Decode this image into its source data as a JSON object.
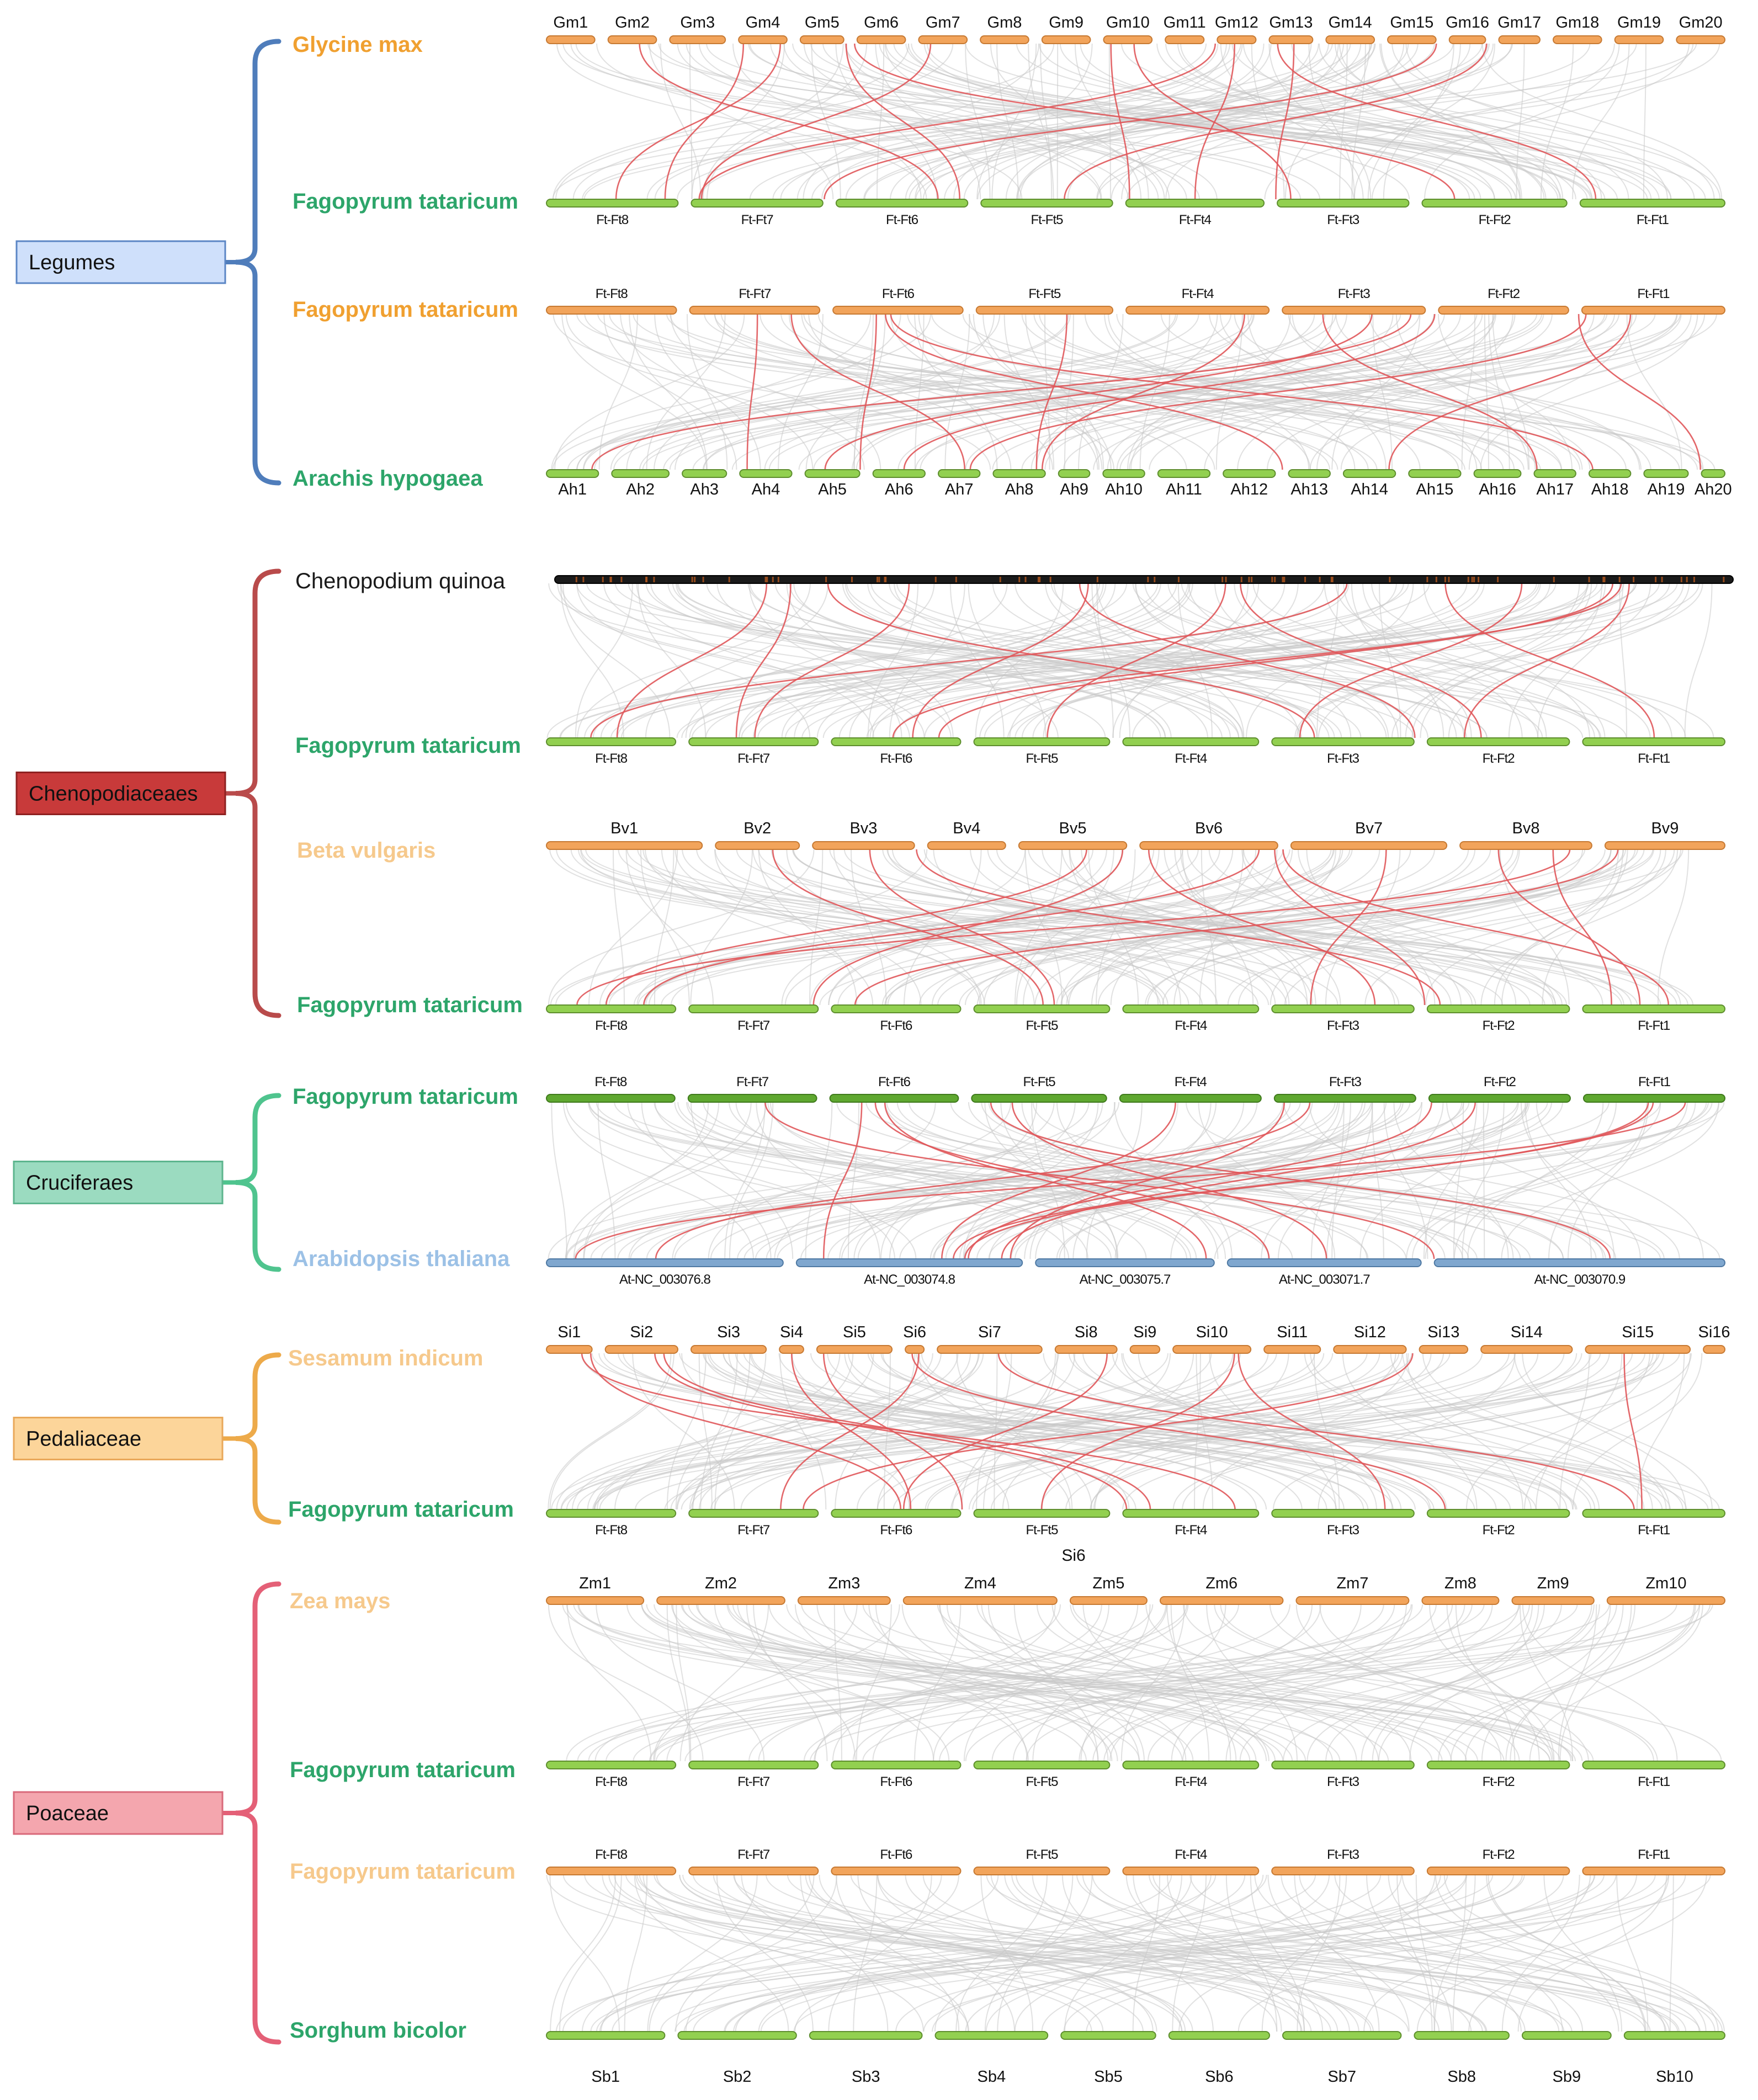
{
  "colors": {
    "bar_orange": "#F2A45B",
    "bar_orange_edge": "#C77A33",
    "bar_green": "#92D050",
    "bar_green_edge": "#5E8E2E",
    "bar_darkgreen": "#5FA830",
    "bar_blue": "#7FA7CF",
    "bar_blue_edge": "#4F79A3",
    "bar_black": "#1a1a1a",
    "gray_link": "#C9C9C9",
    "red_link": "#E0575A",
    "label_orange": "#F0A030",
    "label_green": "#2DA56A",
    "label_peach": "#F6C98C",
    "label_lightblue": "#9CC1E6",
    "label_black": "#1a1a1a"
  },
  "families": [
    {
      "id": "legumes",
      "name": "Legumes",
      "box_color": "#CFE0FB",
      "box_edge": "#5B86C5",
      "bracket_color": "#4F7DBB"
    },
    {
      "id": "cheno",
      "name": "Chenopodiaceaes",
      "box_color": "#C83A3A",
      "box_edge": "#8E2020",
      "bracket_color": "#B94B4B"
    },
    {
      "id": "cruci",
      "name": "Cruciferaes",
      "box_color": "#9BDBC0",
      "box_edge": "#5DB58E",
      "bracket_color": "#4FC48E"
    },
    {
      "id": "peda",
      "name": "Pedaliaceae",
      "box_color": "#FCD59A",
      "box_edge": "#E9A85A",
      "bracket_color": "#EDAA4A"
    },
    {
      "id": "poa",
      "name": "Poaceae",
      "box_color": "#F4A6AE",
      "box_edge": "#D9697A",
      "bracket_color": "#E46077"
    }
  ],
  "panels": [
    {
      "id": "gm-ft",
      "top": {
        "species": "Glycine max",
        "label_color": "orange",
        "bar": "orange",
        "chroms": [
          "Gm1",
          "Gm2",
          "Gm3",
          "Gm4",
          "Gm5",
          "Gm6",
          "Gm7",
          "Gm8",
          "Gm9",
          "Gm10",
          "Gm11",
          "Gm12",
          "Gm13",
          "Gm14",
          "Gm15",
          "Gm16",
          "Gm17",
          "Gm18",
          "Gm19",
          "Gm20"
        ]
      },
      "bottom": {
        "species": "Fagopyrum tataricum",
        "label_color": "green",
        "bar": "green",
        "chroms": [
          "Ft-Ft8",
          "Ft-Ft7",
          "Ft-Ft6",
          "Ft-Ft5",
          "Ft-Ft4",
          "Ft-Ft3",
          "Ft-Ft2",
          "Ft-Ft1"
        ]
      }
    },
    {
      "id": "ft-ah",
      "top": {
        "species": "Fagopyrum tataricum",
        "label_color": "orange",
        "bar": "orange",
        "chroms": [
          "Ft-Ft8",
          "Ft-Ft7",
          "Ft-Ft6",
          "Ft-Ft5",
          "Ft-Ft4",
          "Ft-Ft3",
          "Ft-Ft2",
          "Ft-Ft1"
        ]
      },
      "bottom": {
        "species": "Arachis hypogaea",
        "label_color": "green",
        "bar": "green",
        "chroms": [
          "Ah1",
          "Ah2",
          "Ah3",
          "Ah4",
          "Ah5",
          "Ah6",
          "Ah7",
          "Ah8",
          "Ah9",
          "Ah10",
          "Ah11",
          "Ah12",
          "Ah13",
          "Ah14",
          "Ah15",
          "Ah16",
          "Ah17",
          "Ah18",
          "Ah19",
          "Ah20"
        ]
      }
    },
    {
      "id": "cq-ft",
      "top": {
        "species": "Chenopodium quinoa",
        "label_color": "black",
        "bar": "black",
        "chroms": []
      },
      "bottom": {
        "species": "Fagopyrum tataricum",
        "label_color": "green",
        "bar": "green",
        "chroms": [
          "Ft-Ft8",
          "Ft-Ft7",
          "Ft-Ft6",
          "Ft-Ft5",
          "Ft-Ft4",
          "Ft-Ft3",
          "Ft-Ft2",
          "Ft-Ft1"
        ]
      }
    },
    {
      "id": "bv-ft",
      "top": {
        "species": "Beta vulgaris",
        "label_color": "peach",
        "bar": "orange",
        "chroms": [
          "Bv1",
          "Bv2",
          "Bv3",
          "Bv4",
          "Bv5",
          "Bv6",
          "Bv7",
          "Bv8",
          "Bv9"
        ]
      },
      "bottom": {
        "species": "Fagopyrum tataricum",
        "label_color": "green",
        "bar": "green",
        "chroms": [
          "Ft-Ft8",
          "Ft-Ft7",
          "Ft-Ft6",
          "Ft-Ft5",
          "Ft-Ft4",
          "Ft-Ft3",
          "Ft-Ft2",
          "Ft-Ft1"
        ]
      }
    },
    {
      "id": "ft-at",
      "top": {
        "species": "Fagopyrum tataricum",
        "label_color": "green",
        "bar": "darkgreen",
        "chroms": [
          "Ft-Ft8",
          "Ft-Ft7",
          "Ft-Ft6",
          "Ft-Ft5",
          "Ft-Ft4",
          "Ft-Ft3",
          "Ft-Ft2",
          "Ft-Ft1"
        ]
      },
      "bottom": {
        "species": "Arabidopsis thaliana",
        "label_color": "lightblue",
        "bar": "blue",
        "chroms": [
          "At-NC_003076.8",
          "At-NC_003074.8",
          "At-NC_003075.7",
          "At-NC_003071.7",
          "At-NC_003070.9"
        ]
      }
    },
    {
      "id": "si-ft",
      "top": {
        "species": "Sesamum indicum",
        "label_color": "peach",
        "bar": "orange",
        "chroms": [
          "Si1",
          "Si2",
          "Si3",
          "Si4",
          "Si5",
          "Si6",
          "Si7",
          "Si8",
          "Si9",
          "Si10",
          "Si11",
          "Si12",
          "Si13",
          "Si14",
          "Si15",
          "Si16"
        ]
      },
      "bottom": {
        "species": "Fagopyrum tataricum",
        "label_color": "green",
        "bar": "green",
        "chroms": [
          "Ft-Ft8",
          "Ft-Ft7",
          "Ft-Ft6",
          "Ft-Ft5",
          "Ft-Ft4",
          "Ft-Ft3",
          "Ft-Ft2",
          "Ft-Ft1"
        ]
      },
      "extra_label": "Si6"
    },
    {
      "id": "zm-ft",
      "top": {
        "species": "Zea mays",
        "label_color": "peach",
        "bar": "orange",
        "chroms": [
          "Zm1",
          "Zm2",
          "Zm3",
          "Zm4",
          "Zm5",
          "Zm6",
          "Zm7",
          "Zm8",
          "Zm9",
          "Zm10"
        ]
      },
      "bottom": {
        "species": "Fagopyrum tataricum",
        "label_color": "green",
        "bar": "green",
        "chroms": [
          "Ft-Ft8",
          "Ft-Ft7",
          "Ft-Ft6",
          "Ft-Ft5",
          "Ft-Ft4",
          "Ft-Ft3",
          "Ft-Ft2",
          "Ft-Ft1"
        ]
      }
    },
    {
      "id": "ft-sb",
      "top": {
        "species": "Fagopyrum tataricum",
        "label_color": "peach",
        "bar": "orange",
        "chroms": [
          "Ft-Ft8",
          "Ft-Ft7",
          "Ft-Ft6",
          "Ft-Ft5",
          "Ft-Ft4",
          "Ft-Ft3",
          "Ft-Ft2",
          "Ft-Ft1"
        ]
      },
      "bottom": {
        "species": "Sorghum bicolor",
        "label_color": "green",
        "bar": "green",
        "chroms": [
          "Sb1",
          "Sb2",
          "Sb3",
          "Sb4",
          "Sb5",
          "Sb6",
          "Sb7",
          "Sb8",
          "Sb9",
          "Sb10"
        ]
      }
    }
  ]
}
